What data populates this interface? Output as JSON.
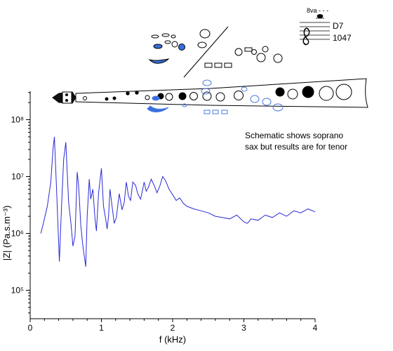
{
  "chart_data": {
    "type": "line",
    "xlabel": "f (kHz)",
    "ylabel": "|Z| (Pa.s.m⁻³)",
    "xlim": [
      0,
      4
    ],
    "ylim_log10": [
      4.5,
      8.5
    ],
    "y_scale": "log",
    "grid": false,
    "x_ticks": [
      "0",
      "1",
      "2",
      "3",
      "4"
    ],
    "y_ticks": [
      "10⁵",
      "10⁶",
      "10⁷",
      "10⁸"
    ],
    "series": [
      {
        "color": "#2a2ad6",
        "x": [
          0.15,
          0.19,
          0.24,
          0.29,
          0.32,
          0.34,
          0.37,
          0.41,
          0.44,
          0.47,
          0.5,
          0.54,
          0.57,
          0.6,
          0.63,
          0.66,
          0.68,
          0.71,
          0.74,
          0.78,
          0.8,
          0.83,
          0.85,
          0.88,
          0.91,
          0.93,
          0.96,
          1.0,
          1.03,
          1.06,
          1.08,
          1.1,
          1.12,
          1.15,
          1.18,
          1.21,
          1.25,
          1.29,
          1.32,
          1.35,
          1.38,
          1.41,
          1.44,
          1.48,
          1.51,
          1.55,
          1.58,
          1.6,
          1.63,
          1.66,
          1.7,
          1.74,
          1.78,
          1.82,
          1.86,
          1.9,
          1.95,
          2.0,
          2.05,
          2.1,
          2.15,
          2.2,
          2.3,
          2.4,
          2.5,
          2.6,
          2.7,
          2.8,
          2.9,
          3.0,
          3.05,
          3.1,
          3.2,
          3.3,
          3.4,
          3.5,
          3.6,
          3.7,
          3.8,
          3.9,
          4.0
        ],
        "y": [
          1000000,
          1600000,
          3000000,
          8000000,
          30000000,
          50000000,
          6000000,
          320000,
          3000000,
          20000000,
          40000000,
          3500000,
          1600000,
          600000,
          900000,
          12000000,
          7000000,
          1400000,
          600000,
          260000,
          2000000,
          9000000,
          4000000,
          6000000,
          1800000,
          1100000,
          5000000,
          14000000,
          3000000,
          1800000,
          1200000,
          2000000,
          6000000,
          3000000,
          1500000,
          1900000,
          5000000,
          2600000,
          3500000,
          8000000,
          4500000,
          3800000,
          8000000,
          7000000,
          5000000,
          4000000,
          6000000,
          8000000,
          5500000,
          6500000,
          9000000,
          7000000,
          5200000,
          6800000,
          10000000,
          8500000,
          6000000,
          4800000,
          3800000,
          4200000,
          3400000,
          3000000,
          2700000,
          2500000,
          2300000,
          2000000,
          1900000,
          1800000,
          2100000,
          1600000,
          1500000,
          1800000,
          1700000,
          2100000,
          1900000,
          2300000,
          2000000,
          2500000,
          2300000,
          2700000,
          2400000
        ]
      }
    ],
    "annotation": "Schematic shows soprano\nsax but results are for tenor",
    "inset_labels": [
      "8va - - -",
      "D7",
      "1047"
    ]
  }
}
